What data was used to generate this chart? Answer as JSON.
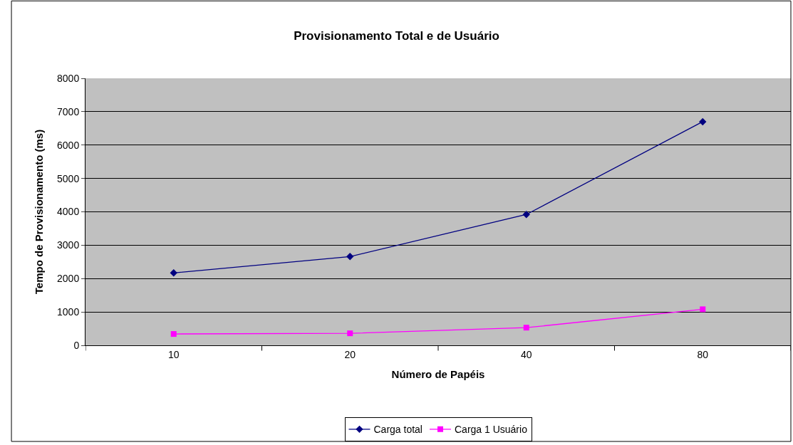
{
  "chart_data": {
    "type": "line",
    "title": "Provisionamento Total e de Usuário",
    "xlabel": "Número de Papéis",
    "ylabel": "Tempo de Provisionamento (ms)",
    "categories": [
      "10",
      "20",
      "40",
      "80"
    ],
    "series": [
      {
        "name": "Carga total",
        "color": "#000080",
        "marker": "diamond",
        "values": [
          2170,
          2660,
          3920,
          6700
        ]
      },
      {
        "name": "Carga 1 Usuário",
        "color": "#ff00ff",
        "marker": "square",
        "values": [
          340,
          360,
          530,
          1080
        ]
      }
    ],
    "ylim": [
      0,
      8000
    ],
    "yticks": [
      0,
      1000,
      2000,
      3000,
      4000,
      5000,
      6000,
      7000,
      8000
    ],
    "grid": "y",
    "legend": "bottom",
    "line_style": "solid"
  }
}
